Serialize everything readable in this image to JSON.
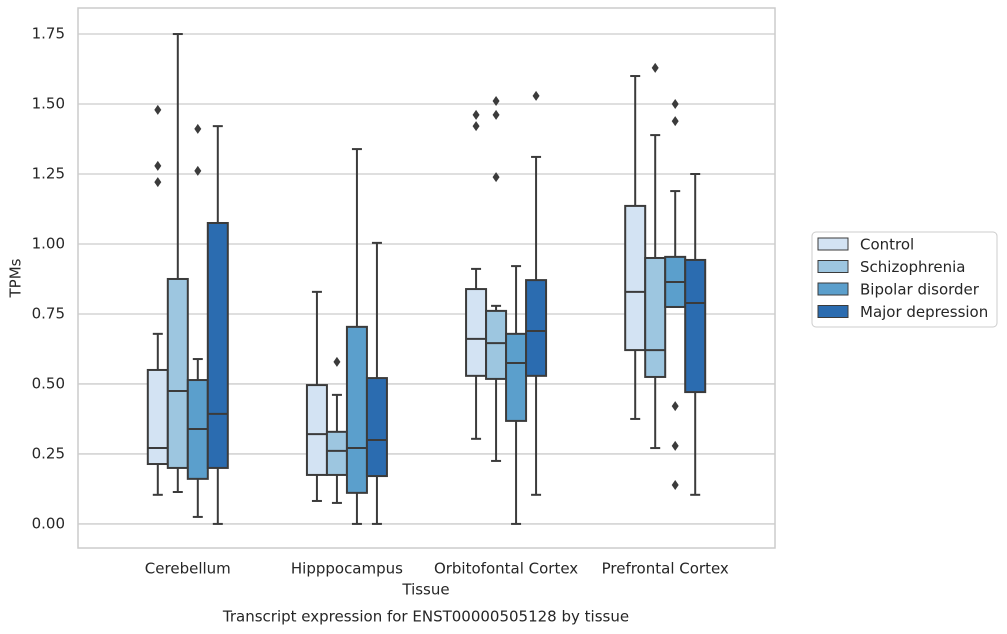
{
  "chart_data": {
    "type": "box",
    "title": "Transcript expression for ENST00000505128 by tissue",
    "xlabel": "Tissue",
    "ylabel": "TPMs",
    "categories": [
      "Cerebellum",
      "Hipppocampus",
      "Orbitofontal Cortex",
      "Prefrontal Cortex"
    ],
    "ylim": [
      -0.086,
      1.843
    ],
    "yticks": [
      {
        "value": 0,
        "label": "0.00"
      },
      0.25,
      {
        "value": 0.5,
        "label": "0.50"
      },
      0.75,
      {
        "value": 1,
        "label": "1.00"
      },
      1.25,
      {
        "value": 1.5,
        "label": "1.50"
      },
      1.75
    ],
    "grid": true,
    "legend": "right",
    "series": [
      {
        "name": "Control",
        "color": "#d3e3f3",
        "low": [
          0.104,
          0.082,
          0.304,
          0.375
        ],
        "q1": [
          0.214,
          0.175,
          0.529,
          0.621
        ],
        "median": [
          0.271,
          0.321,
          0.661,
          0.829
        ],
        "q3": [
          0.55,
          0.496,
          0.839,
          1.136
        ],
        "high": [
          0.679,
          0.829,
          0.911,
          1.6
        ],
        "outliers": [
          [
            1.221,
            1.279,
            1.479
          ],
          [],
          [
            1.421,
            1.461
          ],
          []
        ]
      },
      {
        "name": "Schizophrenia",
        "color": "#9dc6e0",
        "low": [
          0.114,
          0.075,
          0.225,
          0.271
        ],
        "q1": [
          0.2,
          0.175,
          0.518,
          0.525
        ],
        "median": [
          0.475,
          0.261,
          0.646,
          0.621
        ],
        "q3": [
          0.875,
          0.329,
          0.761,
          0.95
        ],
        "high": [
          1.75,
          0.461,
          0.779,
          1.389
        ],
        "outliers": [
          [],
          [
            0.579
          ],
          [
            1.239,
            1.461,
            1.511
          ],
          [
            1.629
          ]
        ]
      },
      {
        "name": "Bipolar disorder",
        "color": "#5b9fcc",
        "low": [
          0.025,
          0,
          0,
          0.775
        ],
        "q1": [
          0.161,
          0.111,
          0.368,
          0.775
        ],
        "median": [
          0.339,
          0.271,
          0.575,
          0.864
        ],
        "q3": [
          0.514,
          0.704,
          0.679,
          0.954
        ],
        "high": [
          0.589,
          1.339,
          0.921,
          1.189
        ],
        "outliers": [
          [
            1.261,
            1.411
          ],
          [],
          [],
          [
            0.139,
            0.279,
            0.421,
            1.439,
            1.5
          ]
        ]
      },
      {
        "name": "Major depression",
        "color": "#2b6cb0",
        "low": [
          0,
          0,
          0.104,
          0.104
        ],
        "q1": [
          0.2,
          0.171,
          0.529,
          0.471
        ],
        "median": [
          0.393,
          0.3,
          0.689,
          0.789
        ],
        "q3": [
          1.075,
          0.521,
          0.871,
          0.943
        ],
        "high": [
          1.421,
          1.004,
          1.311,
          1.25
        ],
        "outliers": [
          [],
          [],
          [
            1.529
          ],
          []
        ]
      }
    ]
  }
}
